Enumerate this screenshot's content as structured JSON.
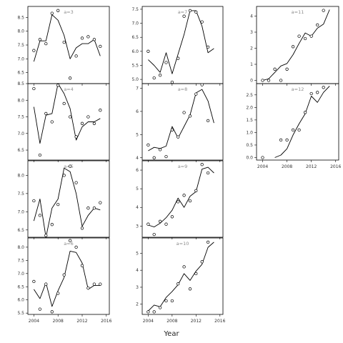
{
  "chart_data": {
    "type": "scatter",
    "xlabel": "Year",
    "x_ticks": [
      2004,
      2008,
      2012,
      2016
    ],
    "xlim": [
      2003,
      2016.5
    ],
    "facets": [
      {
        "title": "a=3",
        "ylim": [
          6.1,
          8.9
        ],
        "y_ticks": [
          6.5,
          7.0,
          7.5,
          8.0,
          8.5
        ],
        "points": [
          [
            2004,
            7.3
          ],
          [
            2005,
            7.7
          ],
          [
            2006,
            7.55
          ],
          [
            2007,
            8.65
          ],
          [
            2008,
            8.75
          ],
          [
            2009,
            7.6
          ],
          [
            2010,
            6.3
          ],
          [
            2011,
            7.1
          ],
          [
            2012,
            7.75
          ],
          [
            2013,
            7.8
          ],
          [
            2014,
            7.7
          ],
          [
            2015,
            7.45
          ]
        ],
        "fit": [
          [
            2004,
            6.9
          ],
          [
            2005,
            7.65
          ],
          [
            2006,
            7.65
          ],
          [
            2007,
            8.6
          ],
          [
            2008,
            8.4
          ],
          [
            2009,
            7.85
          ],
          [
            2010,
            7.0
          ],
          [
            2011,
            7.4
          ],
          [
            2012,
            7.55
          ],
          [
            2013,
            7.55
          ],
          [
            2014,
            7.7
          ],
          [
            2015,
            7.1
          ]
        ]
      },
      {
        "title": "a=4",
        "ylim": [
          6.2,
          8.5
        ],
        "y_ticks": [
          6.5,
          7.0,
          7.5,
          8.0,
          8.5
        ],
        "points": [
          [
            2004,
            8.35
          ],
          [
            2005,
            6.35
          ],
          [
            2006,
            7.6
          ],
          [
            2007,
            7.35
          ],
          [
            2008,
            8.45
          ],
          [
            2009,
            7.9
          ],
          [
            2010,
            7.5
          ],
          [
            2011,
            6.9
          ],
          [
            2012,
            7.3
          ],
          [
            2013,
            7.5
          ],
          [
            2014,
            7.3
          ],
          [
            2015,
            7.7
          ]
        ],
        "fit": [
          [
            2004,
            7.8
          ],
          [
            2005,
            6.7
          ],
          [
            2006,
            7.55
          ],
          [
            2007,
            7.6
          ],
          [
            2008,
            8.5
          ],
          [
            2009,
            8.2
          ],
          [
            2010,
            7.75
          ],
          [
            2011,
            6.8
          ],
          [
            2012,
            7.2
          ],
          [
            2013,
            7.35
          ],
          [
            2014,
            7.35
          ],
          [
            2015,
            7.45
          ]
        ]
      },
      {
        "title": "a=5",
        "ylim": [
          6.3,
          8.4
        ],
        "y_ticks": [
          6.5,
          7.0,
          7.5,
          8.0
        ],
        "points": [
          [
            2004,
            7.3
          ],
          [
            2005,
            6.9
          ],
          [
            2006,
            6.35
          ],
          [
            2007,
            6.65
          ],
          [
            2008,
            7.2
          ],
          [
            2009,
            8.0
          ],
          [
            2010,
            8.25
          ],
          [
            2011,
            7.8
          ],
          [
            2012,
            6.55
          ],
          [
            2013,
            7.1
          ],
          [
            2014,
            7.1
          ],
          [
            2015,
            7.25
          ]
        ],
        "fit": [
          [
            2004,
            6.75
          ],
          [
            2005,
            7.35
          ],
          [
            2006,
            6.3
          ],
          [
            2007,
            7.1
          ],
          [
            2008,
            7.35
          ],
          [
            2009,
            8.2
          ],
          [
            2010,
            8.1
          ],
          [
            2011,
            7.5
          ],
          [
            2012,
            6.6
          ],
          [
            2013,
            6.9
          ],
          [
            2014,
            7.1
          ],
          [
            2015,
            7.05
          ]
        ]
      },
      {
        "title": "a=6",
        "ylim": [
          5.45,
          8.35
        ],
        "y_ticks": [
          5.5,
          6.0,
          6.5,
          7.0,
          7.5,
          8.0
        ],
        "points": [
          [
            2004,
            6.7
          ],
          [
            2005,
            5.65
          ],
          [
            2006,
            6.6
          ],
          [
            2007,
            5.55
          ],
          [
            2008,
            6.25
          ],
          [
            2009,
            6.95
          ],
          [
            2010,
            8.25
          ],
          [
            2011,
            8.0
          ],
          [
            2012,
            7.3
          ],
          [
            2013,
            6.45
          ],
          [
            2014,
            6.6
          ],
          [
            2015,
            6.6
          ]
        ],
        "fit": [
          [
            2004,
            6.4
          ],
          [
            2005,
            6.05
          ],
          [
            2006,
            6.65
          ],
          [
            2007,
            5.75
          ],
          [
            2008,
            6.35
          ],
          [
            2009,
            6.85
          ],
          [
            2010,
            7.85
          ],
          [
            2011,
            7.8
          ],
          [
            2012,
            7.4
          ],
          [
            2013,
            6.4
          ],
          [
            2014,
            6.55
          ],
          [
            2015,
            6.55
          ]
        ]
      },
      {
        "title": "a=7",
        "ylim": [
          4.85,
          7.6
        ],
        "y_ticks": [
          5.0,
          5.5,
          6.0,
          6.5,
          7.0,
          7.5
        ],
        "points": [
          [
            2004,
            6.0
          ],
          [
            2005,
            5.05
          ],
          [
            2006,
            5.15
          ],
          [
            2007,
            5.6
          ],
          [
            2008,
            4.9
          ],
          [
            2009,
            5.75
          ],
          [
            2010,
            7.25
          ],
          [
            2011,
            7.45
          ],
          [
            2012,
            7.4
          ],
          [
            2013,
            7.05
          ],
          [
            2014,
            6.15
          ]
        ],
        "fit": [
          [
            2004,
            5.7
          ],
          [
            2005,
            5.5
          ],
          [
            2006,
            5.25
          ],
          [
            2007,
            5.95
          ],
          [
            2008,
            5.2
          ],
          [
            2009,
            5.9
          ],
          [
            2010,
            6.6
          ],
          [
            2011,
            7.45
          ],
          [
            2012,
            7.45
          ],
          [
            2013,
            6.9
          ],
          [
            2014,
            5.95
          ],
          [
            2015,
            6.1
          ]
        ]
      },
      {
        "title": "a=8",
        "ylim": [
          3.9,
          7.2
        ],
        "y_ticks": [
          4.0,
          5.0,
          6.0,
          7.0
        ],
        "points": [
          [
            2004,
            4.55
          ],
          [
            2005,
            4.0
          ],
          [
            2006,
            4.35
          ],
          [
            2007,
            4.05
          ],
          [
            2008,
            5.2
          ],
          [
            2009,
            4.9
          ],
          [
            2010,
            5.95
          ],
          [
            2011,
            5.8
          ],
          [
            2012,
            6.75
          ],
          [
            2013,
            7.15
          ],
          [
            2014,
            5.6
          ]
        ],
        "fit": [
          [
            2004,
            4.3
          ],
          [
            2005,
            4.45
          ],
          [
            2006,
            4.4
          ],
          [
            2007,
            4.5
          ],
          [
            2008,
            5.35
          ],
          [
            2009,
            4.85
          ],
          [
            2010,
            5.35
          ],
          [
            2011,
            5.85
          ],
          [
            2012,
            6.8
          ],
          [
            2013,
            6.95
          ],
          [
            2014,
            6.45
          ],
          [
            2015,
            5.5
          ]
        ]
      },
      {
        "title": "a=9",
        "ylim": [
          2.4,
          6.5
        ],
        "y_ticks": [
          3,
          4,
          5,
          6
        ],
        "points": [
          [
            2004,
            3.1
          ],
          [
            2005,
            2.55
          ],
          [
            2006,
            3.25
          ],
          [
            2007,
            3.1
          ],
          [
            2008,
            3.5
          ],
          [
            2009,
            4.3
          ],
          [
            2010,
            4.65
          ],
          [
            2011,
            4.35
          ],
          [
            2012,
            4.9
          ],
          [
            2013,
            6.3
          ],
          [
            2014,
            5.85
          ]
        ],
        "fit": [
          [
            2004,
            3.05
          ],
          [
            2005,
            2.95
          ],
          [
            2006,
            3.15
          ],
          [
            2007,
            3.45
          ],
          [
            2008,
            3.85
          ],
          [
            2009,
            4.5
          ],
          [
            2010,
            4.0
          ],
          [
            2011,
            4.6
          ],
          [
            2012,
            4.85
          ],
          [
            2013,
            6.05
          ],
          [
            2014,
            6.15
          ],
          [
            2015,
            5.85
          ]
        ]
      },
      {
        "title": "a=10",
        "ylim": [
          1.4,
          5.9
        ],
        "y_ticks": [
          2,
          3,
          4,
          5
        ],
        "points": [
          [
            2004,
            1.55
          ],
          [
            2005,
            1.55
          ],
          [
            2006,
            1.8
          ],
          [
            2007,
            2.2
          ],
          [
            2008,
            2.2
          ],
          [
            2009,
            3.2
          ],
          [
            2010,
            4.2
          ],
          [
            2011,
            2.9
          ],
          [
            2012,
            3.8
          ],
          [
            2013,
            4.5
          ],
          [
            2014,
            5.65
          ]
        ],
        "fit": [
          [
            2004,
            1.6
          ],
          [
            2005,
            1.95
          ],
          [
            2006,
            1.85
          ],
          [
            2007,
            2.4
          ],
          [
            2008,
            2.75
          ],
          [
            2009,
            3.15
          ],
          [
            2010,
            3.8
          ],
          [
            2011,
            3.4
          ],
          [
            2012,
            3.95
          ],
          [
            2013,
            4.35
          ],
          [
            2014,
            5.35
          ],
          [
            2015,
            5.65
          ]
        ]
      },
      {
        "title": "a=11",
        "ylim": [
          -0.2,
          4.6
        ],
        "y_ticks": [
          0,
          1,
          2,
          3,
          4
        ],
        "points": [
          [
            2004,
            0.0
          ],
          [
            2005,
            0.0
          ],
          [
            2006,
            0.7
          ],
          [
            2007,
            0.0
          ],
          [
            2008,
            0.7
          ],
          [
            2009,
            2.1
          ],
          [
            2010,
            2.75
          ],
          [
            2011,
            2.6
          ],
          [
            2012,
            2.75
          ],
          [
            2013,
            3.45
          ],
          [
            2014,
            4.35
          ]
        ],
        "fit": [
          [
            2004,
            0.0
          ],
          [
            2005,
            0.1
          ],
          [
            2006,
            0.5
          ],
          [
            2007,
            0.9
          ],
          [
            2008,
            1.05
          ],
          [
            2009,
            1.6
          ],
          [
            2010,
            2.3
          ],
          [
            2011,
            2.95
          ],
          [
            2012,
            2.75
          ],
          [
            2013,
            3.25
          ],
          [
            2014,
            3.5
          ],
          [
            2015,
            4.4
          ]
        ]
      },
      {
        "title": "a=12",
        "ylim": [
          -0.1,
          2.95
        ],
        "y_ticks": [
          0.0,
          0.5,
          1.0,
          1.5,
          2.0,
          2.5
        ],
        "points": [
          [
            2004,
            0.0
          ],
          [
            2007,
            0.7
          ],
          [
            2008,
            0.7
          ],
          [
            2009,
            1.1
          ],
          [
            2010,
            1.1
          ],
          [
            2011,
            1.8
          ],
          [
            2012,
            2.55
          ],
          [
            2013,
            2.6
          ],
          [
            2014,
            2.8
          ]
        ],
        "fit": [
          [
            2006,
            0.0
          ],
          [
            2007,
            0.1
          ],
          [
            2008,
            0.35
          ],
          [
            2009,
            0.9
          ],
          [
            2010,
            1.35
          ],
          [
            2011,
            1.75
          ],
          [
            2012,
            2.45
          ],
          [
            2013,
            2.2
          ],
          [
            2014,
            2.6
          ],
          [
            2015,
            2.85
          ]
        ]
      }
    ]
  }
}
